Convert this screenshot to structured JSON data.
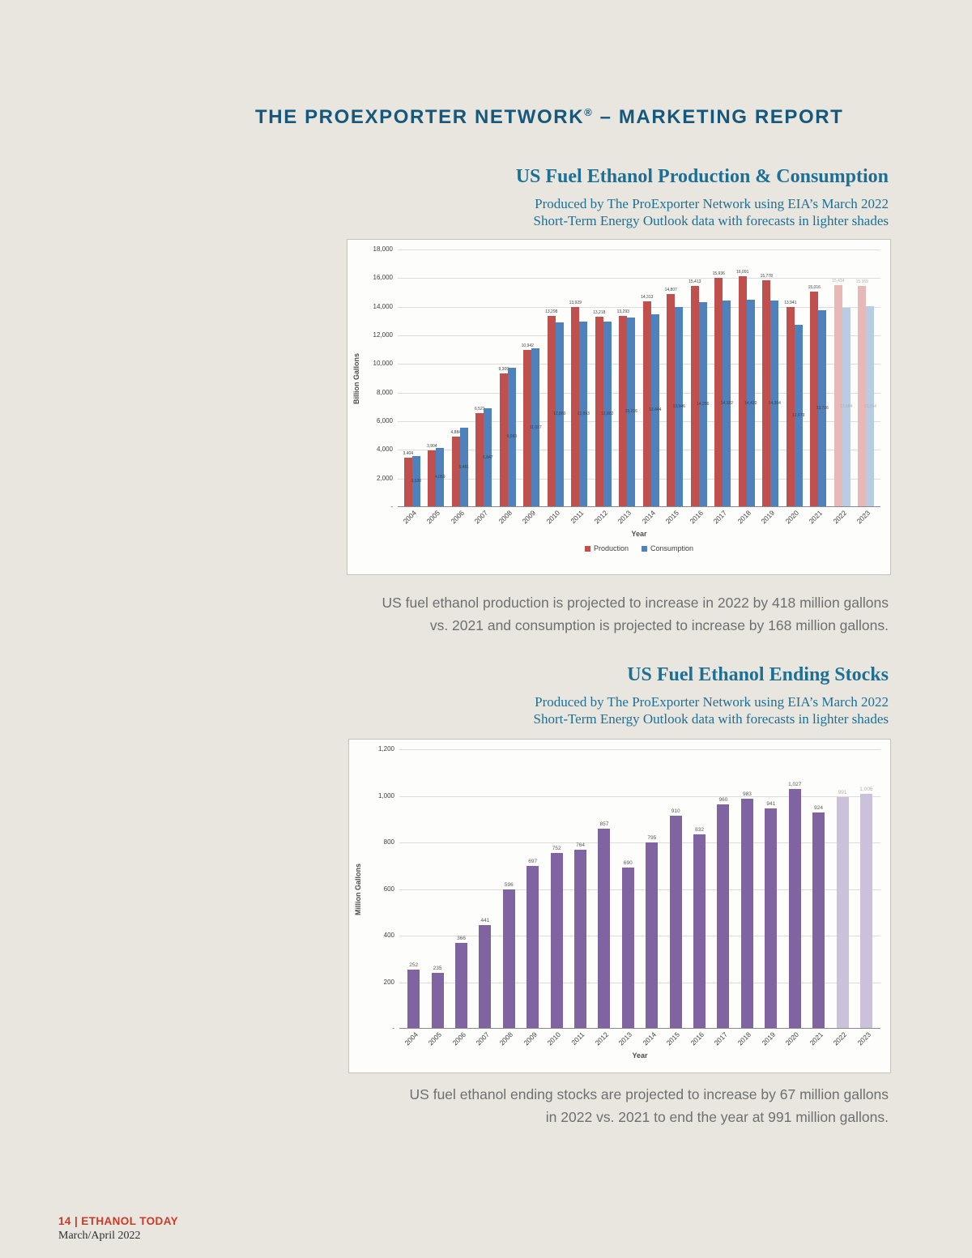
{
  "header": {
    "title_pre": "THE PROEXPORTER NETWORK",
    "title_sup": "®",
    "title_post": " – MARKETING REPORT"
  },
  "sections": [
    {
      "title": "US Fuel Ethanol Production & Consumption",
      "subtitle1": "Produced by The ProExporter Network using EIA’s March 2022",
      "subtitle2": "Short-Term Energy Outlook data with forecasts in lighter shades",
      "caption1": "US fuel ethanol production is projected to increase in 2022 by 418 million gallons",
      "caption2": "vs. 2021 and consumption is projected to increase by 168 million gallons."
    },
    {
      "title": "US Fuel Ethanol Ending Stocks",
      "subtitle1": "Produced by The ProExporter Network using EIA’s March 2022",
      "subtitle2": "Short-Term Energy Outlook data with forecasts in lighter shades",
      "caption1": "US fuel ethanol ending stocks are projected to increase by 67 million gallons",
      "caption2": "in 2022 vs. 2021 to end the year at 991 million gallons."
    }
  ],
  "footer": {
    "issue": "14 | ETHANOL TODAY",
    "date": "March/April 2022"
  },
  "chart_data": [
    {
      "type": "bar",
      "title": "US Fuel Ethanol Production & Consumption",
      "xlabel": "Year",
      "ylabel": "Billion Gallons",
      "categories": [
        "2004",
        "2005",
        "2006",
        "2007",
        "2008",
        "2009",
        "2010",
        "2011",
        "2012",
        "2013",
        "2014",
        "2015",
        "2016",
        "2017",
        "2018",
        "2019",
        "2020",
        "2021",
        "2022",
        "2023"
      ],
      "series": [
        {
          "name": "Production",
          "color": "#c0504d",
          "forecast_color": "#e6b9b8",
          "values": [
            3404,
            3904,
            4884,
            6521,
            9309,
            10942,
            13298,
            13929,
            13218,
            13293,
            14313,
            14807,
            15413,
            15936,
            16091,
            15778,
            13941,
            15016,
            15434,
            15369
          ]
        },
        {
          "name": "Consumption",
          "color": "#4f81bd",
          "forecast_color": "#b8cce4",
          "values": [
            3530,
            4059,
            5481,
            6847,
            9683,
            11037,
            12860,
            12893,
            12882,
            13216,
            13444,
            13946,
            14256,
            14382,
            14420,
            14364,
            12679,
            13716,
            13884,
            13954
          ]
        }
      ],
      "forecast_start_index": 18,
      "ylim": [
        0,
        18000
      ],
      "ytick_step": 2000,
      "legend_position": "bottom",
      "grid": true
    },
    {
      "type": "bar",
      "title": "US Fuel Ethanol Ending Stocks",
      "xlabel": "Year",
      "ylabel": "Million Gallons",
      "categories": [
        "2004",
        "2005",
        "2006",
        "2007",
        "2008",
        "2009",
        "2010",
        "2011",
        "2012",
        "2013",
        "2014",
        "2015",
        "2016",
        "2017",
        "2018",
        "2019",
        "2020",
        "2021",
        "2022",
        "2023"
      ],
      "series": [
        {
          "name": "Ending Stocks",
          "color": "#8064a2",
          "forecast_color": "#ccc1da",
          "values": [
            252,
            235,
            366,
            441,
            596,
            697,
            752,
            764,
            857,
            690,
            795,
            910,
            832,
            960,
            983,
            941,
            1027,
            924,
            991,
            1005
          ]
        }
      ],
      "forecast_start_index": 18,
      "ylim": [
        0,
        1200
      ],
      "ytick_step": 200,
      "legend_position": "none",
      "grid": true
    }
  ]
}
